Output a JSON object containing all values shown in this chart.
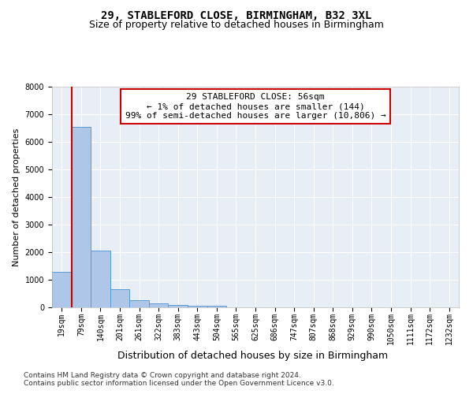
{
  "title1": "29, STABLEFORD CLOSE, BIRMINGHAM, B32 3XL",
  "title2": "Size of property relative to detached houses in Birmingham",
  "xlabel": "Distribution of detached houses by size in Birmingham",
  "ylabel": "Number of detached properties",
  "footnote1": "Contains HM Land Registry data © Crown copyright and database right 2024.",
  "footnote2": "Contains public sector information licensed under the Open Government Licence v3.0.",
  "bar_labels": [
    "19sqm",
    "79sqm",
    "140sqm",
    "201sqm",
    "261sqm",
    "322sqm",
    "383sqm",
    "443sqm",
    "504sqm",
    "565sqm",
    "625sqm",
    "686sqm",
    "747sqm",
    "807sqm",
    "868sqm",
    "929sqm",
    "990sqm",
    "1050sqm",
    "1111sqm",
    "1172sqm",
    "1232sqm"
  ],
  "bar_values": [
    1300,
    6550,
    2070,
    650,
    250,
    130,
    100,
    70,
    70,
    0,
    0,
    0,
    0,
    0,
    0,
    0,
    0,
    0,
    0,
    0,
    0
  ],
  "bar_color": "#aec6e8",
  "bar_edge_color": "#5b9bd5",
  "ylim_max": 8000,
  "yticks": [
    0,
    1000,
    2000,
    3000,
    4000,
    5000,
    6000,
    7000,
    8000
  ],
  "property_line_x": 0.5,
  "property_line_color": "#cc0000",
  "annotation_line1": "29 STABLEFORD CLOSE: 56sqm",
  "annotation_line2": "← 1% of detached houses are smaller (144)",
  "annotation_line3": "99% of semi-detached houses are larger (10,806) →",
  "annotation_edge_color": "#cc0000",
  "background_color": "#e8eef5",
  "grid_color": "#ffffff",
  "title1_fontsize": 10,
  "title2_fontsize": 9,
  "ylabel_fontsize": 8,
  "xlabel_fontsize": 9,
  "tick_fontsize": 7,
  "annotation_fontsize": 8,
  "footnote_fontsize": 6.5
}
